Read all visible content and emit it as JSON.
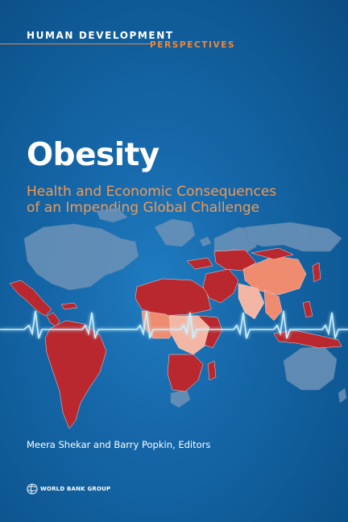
{
  "series": {
    "line1": "HUMAN DEVELOPMENT",
    "line2": "PERSPECTIVES"
  },
  "title": "Obesity",
  "subtitle": {
    "line1": "Health and Economic Consequences",
    "line2": "of an Impending Global Challenge"
  },
  "authors": "Meera Shekar and Barry Popkin, Editors",
  "publisher": {
    "logo_text": "WORLD BANK GROUP"
  },
  "colors": {
    "background": "#1668aa",
    "accent_orange": "#f39a52",
    "map_dark_red": "#b8282e",
    "map_salmon": "#ef8b6e",
    "map_pale": "#f4b6a4",
    "map_grey": "#6d93b8",
    "ecg_line": "#c9f1ff"
  }
}
